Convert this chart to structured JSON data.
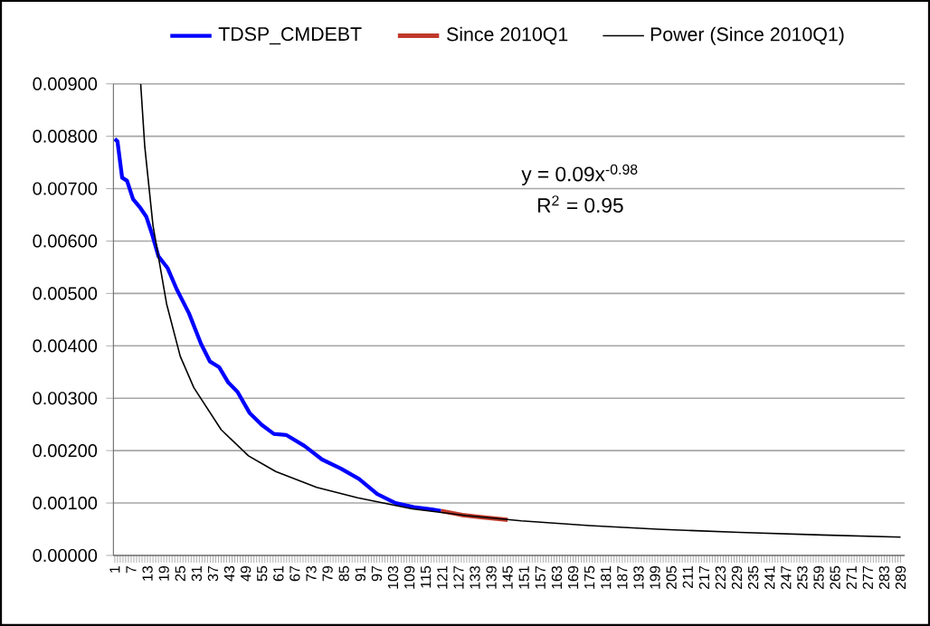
{
  "chart_data": {
    "type": "line",
    "legend": "top",
    "grid": "y",
    "xlim": [
      0.5,
      290.5
    ],
    "ylim": [
      0,
      0.009
    ],
    "xticks": [
      1,
      7,
      13,
      19,
      25,
      31,
      37,
      43,
      49,
      55,
      61,
      67,
      73,
      79,
      85,
      91,
      97,
      103,
      109,
      115,
      121,
      127,
      133,
      139,
      145,
      151,
      157,
      163,
      169,
      175,
      181,
      187,
      193,
      199,
      205,
      211,
      217,
      223,
      229,
      235,
      241,
      247,
      253,
      259,
      265,
      271,
      277,
      283,
      289
    ],
    "yticks": [
      {
        "value": 0,
        "label": "0.00000"
      },
      {
        "value": 0.001,
        "label": "0.00100"
      },
      {
        "value": 0.002,
        "label": "0.00200"
      },
      {
        "value": 0.003,
        "label": "0.00300"
      },
      {
        "value": 0.004,
        "label": "0.00400"
      },
      {
        "value": 0.005,
        "label": "0.00500"
      },
      {
        "value": 0.006,
        "label": "0.00600"
      },
      {
        "value": 0.007,
        "label": "0.00700"
      },
      {
        "value": 0.008,
        "label": "0.00800"
      },
      {
        "value": 0.009,
        "label": "0.00900"
      }
    ],
    "annotations": [
      "y = 0.09x$^{-0.98}$",
      "R$^{2}$ = 0.95"
    ],
    "series": [
      {
        "name": "TDSP_CMDEBT",
        "color": "#0000ff",
        "x": [
          1,
          2,
          3.7,
          5.5,
          7.7,
          10.4,
          12.6,
          14.8,
          17,
          20.4,
          23.7,
          28.2,
          32.6,
          35.9,
          39.3,
          42.6,
          46,
          50.4,
          54.9,
          59.3,
          63.8,
          70.5,
          77,
          83.8,
          90.5,
          97.2,
          103.9,
          110.6,
          117.2,
          120.6
        ],
        "values": [
          0.00795,
          0.0079,
          0.00721,
          0.00715,
          0.0068,
          0.00663,
          0.00646,
          0.00611,
          0.00571,
          0.00548,
          0.00508,
          0.00462,
          0.00404,
          0.0037,
          0.00359,
          0.0033,
          0.00312,
          0.00272,
          0.00249,
          0.00232,
          0.0023,
          0.00209,
          0.00183,
          0.00166,
          0.00146,
          0.00117,
          0.001,
          0.00092,
          0.00088,
          0.00085
        ]
      },
      {
        "name": "Since 2010Q1",
        "color": "#c0392b",
        "x": [
          120.6,
          128.4,
          135,
          145
        ],
        "values": [
          0.00085,
          0.00077,
          0.00073,
          0.00068
        ]
      },
      {
        "name": "Power (Since 2010Q1)",
        "color": "#000000",
        "x": [
          10.5,
          12,
          15,
          20,
          25,
          30,
          40,
          50,
          60,
          75,
          90,
          110,
          130,
          150,
          175,
          200,
          230,
          260,
          289
        ],
        "values": [
          0.009,
          0.0078,
          0.0063,
          0.0048,
          0.0038,
          0.0032,
          0.0024,
          0.0019,
          0.0016,
          0.0013,
          0.0011,
          0.00089,
          0.00076,
          0.00066,
          0.00057,
          0.0005,
          0.00044,
          0.00039,
          0.00035
        ]
      }
    ]
  }
}
